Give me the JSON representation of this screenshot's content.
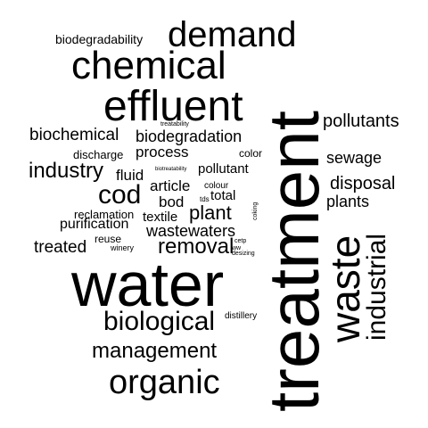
{
  "words": [
    {
      "text": "treatment",
      "vertical": true
    },
    {
      "text": "water",
      "vertical": false
    },
    {
      "text": "effluent",
      "vertical": false
    },
    {
      "text": "chemical",
      "vertical": false
    },
    {
      "text": "waste",
      "vertical": true
    },
    {
      "text": "demand",
      "vertical": false
    },
    {
      "text": "organic",
      "vertical": false
    },
    {
      "text": "biological",
      "vertical": false
    },
    {
      "text": "industrial",
      "vertical": true
    },
    {
      "text": "cod",
      "vertical": false
    },
    {
      "text": "management",
      "vertical": false
    },
    {
      "text": "removal",
      "vertical": false
    },
    {
      "text": "industry",
      "vertical": false
    },
    {
      "text": "plant",
      "vertical": false
    },
    {
      "text": "pollutants",
      "vertical": false
    },
    {
      "text": "disposal",
      "vertical": false
    },
    {
      "text": "biochemical",
      "vertical": false
    },
    {
      "text": "biodegradation",
      "vertical": false
    },
    {
      "text": "sewage",
      "vertical": false
    },
    {
      "text": "plants",
      "vertical": false
    },
    {
      "text": "wastewaters",
      "vertical": false
    },
    {
      "text": "treated",
      "vertical": false
    },
    {
      "text": "process",
      "vertical": false
    },
    {
      "text": "article",
      "vertical": false
    },
    {
      "text": "bod",
      "vertical": false
    },
    {
      "text": "fluid",
      "vertical": false
    },
    {
      "text": "purification",
      "vertical": false
    },
    {
      "text": "pollutant",
      "vertical": false
    },
    {
      "text": "total",
      "vertical": false
    },
    {
      "text": "textile",
      "vertical": false
    },
    {
      "text": "biodegradability",
      "vertical": false
    },
    {
      "text": "discharge",
      "vertical": false
    },
    {
      "text": "reclamation",
      "vertical": false
    },
    {
      "text": "color",
      "vertical": false
    },
    {
      "text": "reuse",
      "vertical": false
    },
    {
      "text": "distillery",
      "vertical": false
    },
    {
      "text": "colour",
      "vertical": false
    },
    {
      "text": "winery",
      "vertical": false
    },
    {
      "text": "coking",
      "vertical": true
    },
    {
      "text": "tds",
      "vertical": false
    },
    {
      "text": "treatability",
      "vertical": false
    },
    {
      "text": "biotreatability",
      "vertical": false
    },
    {
      "text": "cetp",
      "vertical": false
    },
    {
      "text": "ww",
      "vertical": false
    },
    {
      "text": "desizing",
      "vertical": false
    }
  ]
}
